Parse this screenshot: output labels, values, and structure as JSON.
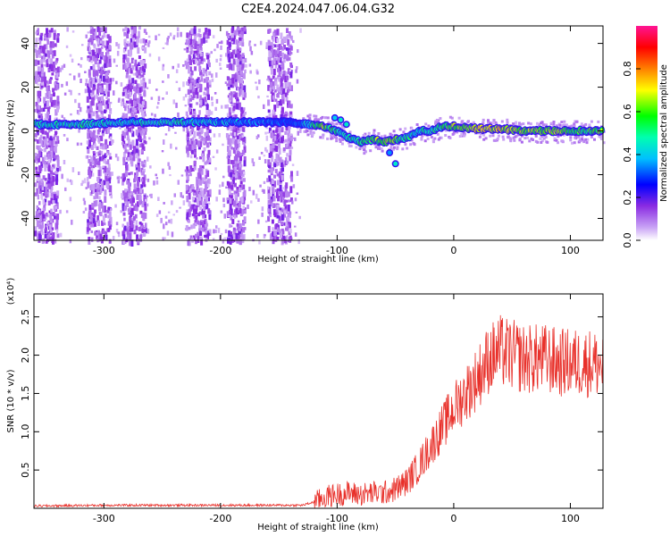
{
  "title": "C2E4.2024.047.06.04.G32",
  "chart_data": [
    {
      "type": "heatmap",
      "xlabel": "Height of straight line (km)",
      "ylabel": "Frequency (Hz)",
      "xlim": [
        -360,
        128
      ],
      "ylim": [
        -50,
        48
      ],
      "x_ticks": [
        -300,
        -200,
        -100,
        0,
        100
      ],
      "y_ticks": [
        -40,
        -20,
        0,
        20,
        40
      ],
      "x_tick_labels": [
        "-300",
        "-200",
        "-100",
        "0",
        "100"
      ],
      "y_tick_labels": [
        "-40",
        "-20",
        "0",
        "20",
        "40"
      ],
      "colorbar": {
        "label": "Normalized spectral amplitude",
        "range": [
          0,
          1
        ],
        "ticks": [
          0.0,
          0.2,
          0.4,
          0.6,
          0.8
        ],
        "tick_labels": [
          "0.0",
          "0.2",
          "0.4",
          "0.6",
          "0.8"
        ],
        "colors": [
          "#ffffff",
          "#8a2be2",
          "#0000ff",
          "#00bfff",
          "#00ffb0",
          "#00ff00",
          "#ffff00",
          "#ff8000",
          "#ff0000",
          "#ff1493"
        ]
      },
      "ridge": [
        {
          "x": -355,
          "y": 3,
          "amp": 0.55
        },
        {
          "x": -320,
          "y": 3,
          "amp": 0.6
        },
        {
          "x": -280,
          "y": 4,
          "amp": 0.55
        },
        {
          "x": -240,
          "y": 4,
          "amp": 0.6
        },
        {
          "x": -200,
          "y": 4,
          "amp": 0.5
        },
        {
          "x": -170,
          "y": 4,
          "amp": 0.5
        },
        {
          "x": -140,
          "y": 4,
          "amp": 0.35
        },
        {
          "x": -125,
          "y": 3,
          "amp": 0.55
        },
        {
          "x": -110,
          "y": 2,
          "amp": 0.75
        },
        {
          "x": -100,
          "y": 0,
          "amp": 0.6
        },
        {
          "x": -90,
          "y": -3,
          "amp": 0.6
        },
        {
          "x": -80,
          "y": -5,
          "amp": 0.65
        },
        {
          "x": -70,
          "y": -4,
          "amp": 0.7
        },
        {
          "x": -60,
          "y": -5,
          "amp": 0.75
        },
        {
          "x": -50,
          "y": -4,
          "amp": 0.7
        },
        {
          "x": -40,
          "y": -3,
          "amp": 0.6
        },
        {
          "x": -30,
          "y": 0,
          "amp": 0.55
        },
        {
          "x": -20,
          "y": 0,
          "amp": 0.6
        },
        {
          "x": -10,
          "y": 2,
          "amp": 0.65
        },
        {
          "x": 0,
          "y": 2,
          "amp": 0.75
        },
        {
          "x": 20,
          "y": 1,
          "amp": 0.8
        },
        {
          "x": 40,
          "y": 1,
          "amp": 0.8
        },
        {
          "x": 60,
          "y": 0,
          "amp": 0.75
        },
        {
          "x": 80,
          "y": 0,
          "amp": 0.75
        },
        {
          "x": 100,
          "y": 0,
          "amp": 0.7
        },
        {
          "x": 128,
          "y": 0,
          "amp": 0.7
        }
      ],
      "background_noise_bands": [
        [
          -360,
          -340
        ],
        [
          -315,
          -295
        ],
        [
          -285,
          -265
        ],
        [
          -230,
          -210
        ],
        [
          -195,
          -180
        ],
        [
          -160,
          -140
        ]
      ],
      "side_branch": [
        {
          "x": -102,
          "y": 6,
          "amp": 0.4
        },
        {
          "x": -97,
          "y": 5,
          "amp": 0.45
        },
        {
          "x": -92,
          "y": 3,
          "amp": 0.45
        },
        {
          "x": -55,
          "y": -10,
          "amp": 0.35
        },
        {
          "x": -50,
          "y": -15,
          "amp": 0.45
        }
      ]
    },
    {
      "type": "line",
      "xlabel": "Height of straight line (km)",
      "ylabel": "SNR (10 * v/v)",
      "y_multiplier_label": "(x10⁴)",
      "xlim": [
        -360,
        128
      ],
      "ylim": [
        0,
        2.8
      ],
      "x_ticks": [
        -300,
        -200,
        -100,
        0,
        100
      ],
      "y_ticks": [
        0.5,
        1.0,
        1.5,
        2.0,
        2.5
      ],
      "x_tick_labels": [
        "-300",
        "-200",
        "-100",
        "0",
        "100"
      ],
      "y_tick_labels": [
        "0.5",
        "1.0",
        "1.5",
        "2.0",
        "2.5"
      ],
      "series": [
        {
          "color": "#e8302a",
          "x": [
            -360,
            -300,
            -200,
            -130,
            -120,
            -110,
            -100,
            -90,
            -80,
            -70,
            -60,
            -50,
            -40,
            -30,
            -20,
            -10,
            0,
            10,
            20,
            30,
            40,
            50,
            60,
            70,
            80,
            90,
            100,
            110,
            120,
            128
          ],
          "y": [
            0.03,
            0.04,
            0.04,
            0.04,
            0.08,
            0.15,
            0.18,
            0.2,
            0.18,
            0.2,
            0.2,
            0.25,
            0.35,
            0.55,
            0.8,
            1.05,
            1.3,
            1.5,
            1.7,
            1.95,
            2.05,
            2.0,
            1.95,
            1.95,
            1.95,
            1.9,
            1.9,
            1.9,
            1.9,
            1.85
          ]
        }
      ]
    }
  ]
}
